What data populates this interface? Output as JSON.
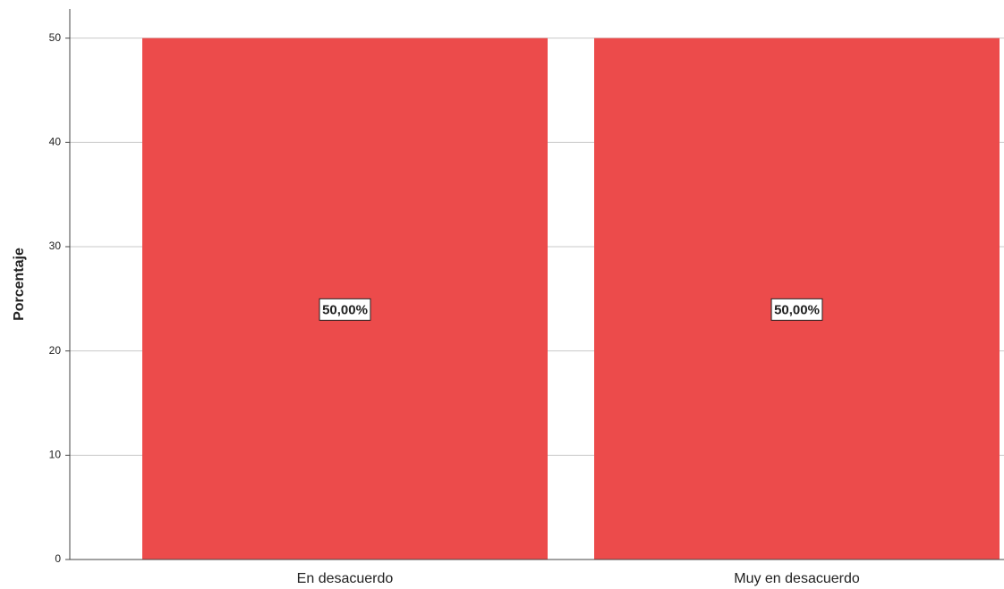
{
  "chart_data": {
    "type": "bar",
    "y_label": "Porcentaje",
    "categories": [
      "En desacuerdo",
      "Muy en desacuerdo"
    ],
    "values": [
      50,
      50
    ],
    "value_labels": [
      "50,00%",
      "50,00%"
    ],
    "color": "#ec4b4b",
    "ylim": [
      0,
      52.8
    ],
    "yticks": [
      0,
      10,
      20,
      30,
      40,
      50
    ],
    "grid": true
  }
}
